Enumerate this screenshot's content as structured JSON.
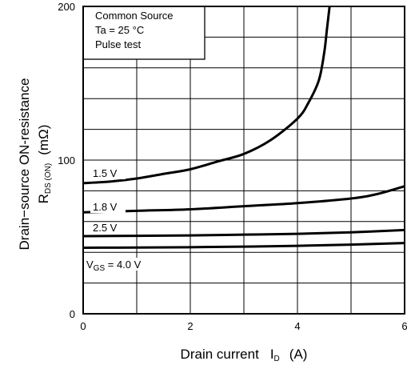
{
  "chart_data": {
    "type": "line",
    "xlabel": {
      "main": "Drain current",
      "symbol": "I",
      "sub": "D",
      "unit": "(A)"
    },
    "ylabel": {
      "line1": "Drain−source ON-resistance",
      "line2_symbol": "R",
      "line2_sub": "DS (ON)",
      "line2_unit": "(mΩ)"
    },
    "xlim": [
      0,
      6
    ],
    "ylim": [
      0,
      200
    ],
    "x_ticks": [
      "0",
      "2",
      "4",
      "6"
    ],
    "y_ticks": [
      "0",
      "100",
      "200"
    ],
    "grid": true,
    "grid_x_step": 1,
    "grid_y_step": 20,
    "conditions": [
      "Common Source",
      "Ta = 25 °C",
      "Pulse test"
    ],
    "series": [
      {
        "name": "1.5 V",
        "label_main": "1.5 V",
        "label_sub": "",
        "x": [
          0,
          0.5,
          1.0,
          1.5,
          2.0,
          2.5,
          3.0,
          3.5,
          4.0,
          4.2,
          4.4,
          4.5,
          4.55,
          4.6
        ],
        "y": [
          85,
          86,
          88,
          91,
          94,
          99,
          104,
          113,
          127,
          137,
          152,
          170,
          185,
          200
        ]
      },
      {
        "name": "1.8 V",
        "label_main": "1.8 V",
        "label_sub": "",
        "x": [
          0,
          1,
          2,
          3,
          4,
          5,
          5.5,
          6
        ],
        "y": [
          66,
          67,
          68,
          70,
          72,
          75,
          78,
          83
        ]
      },
      {
        "name": "2.5 V",
        "label_main": "2.5 V",
        "label_sub": "",
        "x": [
          0,
          1,
          2,
          3,
          4,
          5,
          6
        ],
        "y": [
          50.5,
          50.7,
          51,
          51.5,
          52,
          53,
          54.5
        ]
      },
      {
        "name": "VGS = 4.0 V",
        "label_main": "V",
        "label_sub": "GS",
        "label_tail": " = 4.0 V",
        "x": [
          0,
          1,
          2,
          3,
          4,
          5,
          6
        ],
        "y": [
          43,
          43.1,
          43.3,
          43.7,
          44.2,
          45,
          46
        ]
      }
    ]
  }
}
